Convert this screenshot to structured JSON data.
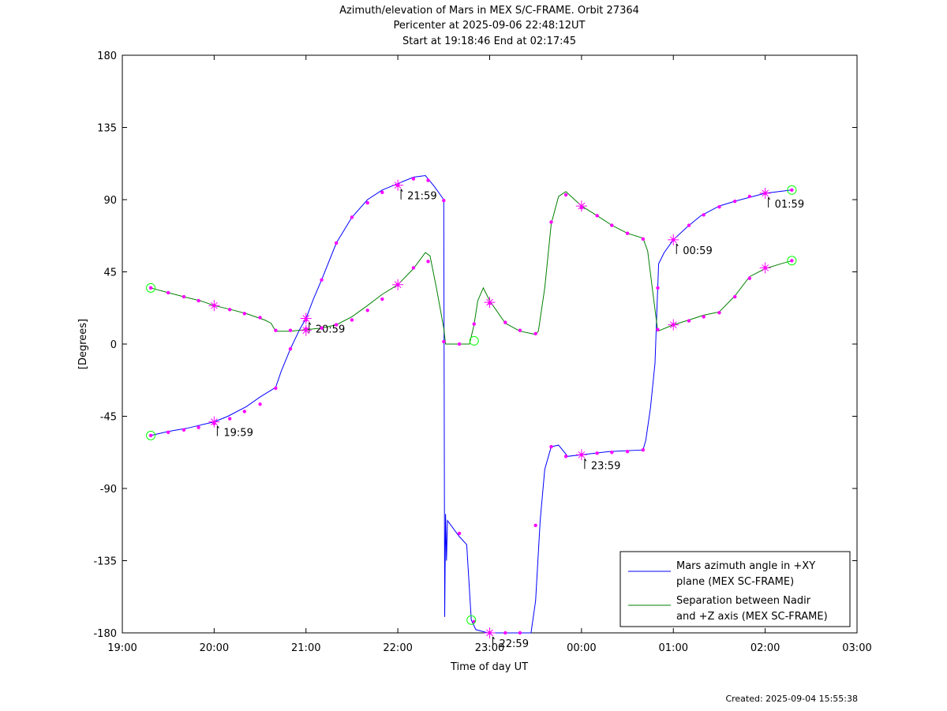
{
  "chart_data": {
    "type": "line",
    "title_lines": [
      "Azimuth/elevation of Mars in MEX S/C-FRAME.  Orbit 27364",
      "Pericenter at 2025-09-06 22:48:12UT",
      "Start at 19:18:46 End at 02:17:45"
    ],
    "xlabel": "Time of day UT",
    "ylabel": "[Degrees]",
    "x_range_hours": [
      19,
      27
    ],
    "ylim": [
      -180,
      180
    ],
    "x_ticks": [
      {
        "h": 19,
        "label": "19:00"
      },
      {
        "h": 20,
        "label": "20:00"
      },
      {
        "h": 21,
        "label": "21:00"
      },
      {
        "h": 22,
        "label": "22:00"
      },
      {
        "h": 23,
        "label": "23:00"
      },
      {
        "h": 24,
        "label": "00:00"
      },
      {
        "h": 25,
        "label": "01:00"
      },
      {
        "h": 26,
        "label": "02:00"
      },
      {
        "h": 27,
        "label": "03:00"
      }
    ],
    "y_ticks": [
      180,
      135,
      90,
      45,
      0,
      -45,
      -90,
      -135,
      -180
    ],
    "grid": false,
    "legend_position": "bottom-right",
    "series": [
      {
        "name": "Mars azimuth angle in +XY plane (MEX SC-FRAME)",
        "legend_lines": [
          "Mars azimuth angle in +XY",
          "plane (MEX SC-FRAME)"
        ],
        "color": "#0000ff",
        "points": [
          [
            19.31,
            -57
          ],
          [
            19.5,
            -54.5
          ],
          [
            19.7,
            -52.5
          ],
          [
            19.85,
            -50.5
          ],
          [
            20.0,
            -48.5
          ],
          [
            20.15,
            -45
          ],
          [
            20.35,
            -39
          ],
          [
            20.5,
            -33
          ],
          [
            20.67,
            -27
          ],
          [
            20.73,
            -17
          ],
          [
            20.83,
            -3
          ],
          [
            20.93,
            9
          ],
          [
            21.0,
            16
          ],
          [
            21.08,
            28
          ],
          [
            21.17,
            40
          ],
          [
            21.33,
            63
          ],
          [
            21.5,
            79
          ],
          [
            21.67,
            90
          ],
          [
            21.83,
            96
          ],
          [
            22.0,
            100
          ],
          [
            22.17,
            104
          ],
          [
            22.3,
            105
          ],
          [
            22.4,
            98
          ],
          [
            22.5,
            90
          ],
          [
            22.51,
            -170
          ],
          [
            22.52,
            -106
          ],
          [
            22.53,
            -135
          ],
          [
            22.54,
            -110
          ],
          [
            22.67,
            -120
          ],
          [
            22.75,
            -125
          ],
          [
            22.8,
            -172
          ],
          [
            22.85,
            -178
          ],
          [
            22.98,
            -180
          ],
          [
            23.2,
            -180
          ],
          [
            23.45,
            -180
          ],
          [
            23.5,
            -160
          ],
          [
            23.55,
            -110
          ],
          [
            23.6,
            -78
          ],
          [
            23.67,
            -64
          ],
          [
            23.75,
            -63
          ],
          [
            23.85,
            -70
          ],
          [
            24.0,
            -69
          ],
          [
            24.3,
            -67
          ],
          [
            24.67,
            -66
          ],
          [
            24.7,
            -60
          ],
          [
            24.75,
            -40
          ],
          [
            24.8,
            -12
          ],
          [
            24.82,
            20
          ],
          [
            24.84,
            50
          ],
          [
            24.9,
            57
          ],
          [
            25.0,
            65
          ],
          [
            25.15,
            73
          ],
          [
            25.3,
            80
          ],
          [
            25.5,
            86
          ],
          [
            25.67,
            89
          ],
          [
            26.0,
            94
          ],
          [
            26.29,
            96
          ]
        ],
        "markers": [
          [
            19.31,
            -57
          ],
          [
            19.5,
            -55
          ],
          [
            19.67,
            -53.5
          ],
          [
            19.83,
            -52
          ],
          [
            20.0,
            -49.5
          ],
          [
            20.17,
            -46.5
          ],
          [
            20.33,
            -42
          ],
          [
            20.5,
            -37.5
          ],
          [
            20.67,
            -27.5
          ],
          [
            20.83,
            -3
          ],
          [
            21.0,
            15
          ],
          [
            21.17,
            40
          ],
          [
            21.33,
            63
          ],
          [
            21.5,
            79
          ],
          [
            21.67,
            88
          ],
          [
            21.83,
            94.5
          ],
          [
            22.0,
            99
          ],
          [
            22.17,
            103
          ],
          [
            22.33,
            102
          ],
          [
            22.5,
            89.5
          ],
          [
            22.67,
            -118
          ],
          [
            22.83,
            -173
          ],
          [
            23.0,
            -180
          ],
          [
            23.17,
            -180
          ],
          [
            23.33,
            -180
          ],
          [
            23.5,
            -113
          ],
          [
            23.67,
            -64
          ],
          [
            23.83,
            -70
          ],
          [
            24.0,
            -69
          ],
          [
            24.17,
            -68
          ],
          [
            24.33,
            -67.5
          ],
          [
            24.5,
            -67
          ],
          [
            24.67,
            -66
          ],
          [
            24.83,
            35
          ],
          [
            25.0,
            65
          ],
          [
            25.17,
            74
          ],
          [
            25.33,
            80.5
          ],
          [
            25.5,
            85.5
          ],
          [
            25.67,
            89
          ],
          [
            25.83,
            92
          ],
          [
            26.0,
            94
          ],
          [
            26.29,
            96
          ]
        ],
        "hour_marks": [
          [
            20.0,
            -48.5,
            "19:59"
          ],
          [
            21.0,
            16,
            "20:59"
          ],
          [
            22.0,
            99,
            "21:59"
          ],
          [
            23.0,
            -180,
            "22:59"
          ],
          [
            24.0,
            -69,
            "23:59"
          ],
          [
            25.0,
            65,
            "00:59"
          ],
          [
            26.0,
            94,
            "01:59"
          ]
        ],
        "circles": [
          [
            19.31,
            -57
          ],
          [
            22.8,
            -172
          ],
          [
            26.29,
            96
          ]
        ]
      },
      {
        "name": "Separation between Nadir and +Z axis (MEX SC-FRAME)",
        "legend_lines": [
          "Separation between Nadir",
          "and +Z axis (MEX SC-FRAME)"
        ],
        "color": "#008000",
        "points": [
          [
            19.31,
            35
          ],
          [
            19.5,
            32
          ],
          [
            19.7,
            29
          ],
          [
            19.85,
            27
          ],
          [
            20.0,
            24
          ],
          [
            20.15,
            22
          ],
          [
            20.35,
            19
          ],
          [
            20.55,
            15
          ],
          [
            20.62,
            13
          ],
          [
            20.67,
            8
          ],
          [
            20.83,
            8
          ],
          [
            21.0,
            9
          ],
          [
            21.17,
            10
          ],
          [
            21.33,
            12
          ],
          [
            21.5,
            17
          ],
          [
            21.67,
            24
          ],
          [
            21.83,
            31
          ],
          [
            22.0,
            37
          ],
          [
            22.17,
            47
          ],
          [
            22.3,
            57
          ],
          [
            22.35,
            55
          ],
          [
            22.42,
            35
          ],
          [
            22.5,
            10
          ],
          [
            22.52,
            0
          ],
          [
            22.67,
            0
          ],
          [
            22.78,
            0
          ],
          [
            22.83,
            12
          ],
          [
            22.87,
            27
          ],
          [
            22.93,
            35
          ],
          [
            23.0,
            27
          ],
          [
            23.17,
            13
          ],
          [
            23.33,
            8
          ],
          [
            23.5,
            6
          ],
          [
            23.53,
            8
          ],
          [
            23.6,
            35
          ],
          [
            23.67,
            75
          ],
          [
            23.75,
            92
          ],
          [
            23.83,
            95
          ],
          [
            24.0,
            86
          ],
          [
            24.17,
            80
          ],
          [
            24.33,
            74
          ],
          [
            24.5,
            69
          ],
          [
            24.67,
            66
          ],
          [
            24.72,
            58
          ],
          [
            24.77,
            35
          ],
          [
            24.83,
            8
          ],
          [
            25.0,
            12
          ],
          [
            25.17,
            15
          ],
          [
            25.33,
            18
          ],
          [
            25.5,
            20
          ],
          [
            25.67,
            30
          ],
          [
            25.83,
            42
          ],
          [
            26.0,
            47
          ],
          [
            26.17,
            50
          ],
          [
            26.29,
            52
          ]
        ],
        "markers": [
          [
            19.31,
            35
          ],
          [
            19.5,
            32
          ],
          [
            19.67,
            29.5
          ],
          [
            19.83,
            27
          ],
          [
            20.0,
            24
          ],
          [
            20.17,
            21.5
          ],
          [
            20.33,
            19
          ],
          [
            20.5,
            16.5
          ],
          [
            20.67,
            8.5
          ],
          [
            20.83,
            8.5
          ],
          [
            21.0,
            9.5
          ],
          [
            21.17,
            10
          ],
          [
            21.33,
            12
          ],
          [
            21.5,
            15
          ],
          [
            21.67,
            21
          ],
          [
            21.83,
            28
          ],
          [
            22.0,
            37
          ],
          [
            22.17,
            47.5
          ],
          [
            22.33,
            51.5
          ],
          [
            22.5,
            1.5
          ],
          [
            22.67,
            0
          ],
          [
            22.83,
            12.5
          ],
          [
            23.0,
            25.5
          ],
          [
            23.17,
            13.5
          ],
          [
            23.33,
            8.5
          ],
          [
            23.5,
            6.5
          ],
          [
            23.67,
            76
          ],
          [
            23.83,
            93
          ],
          [
            24.0,
            85
          ],
          [
            24.17,
            80
          ],
          [
            24.33,
            74
          ],
          [
            24.5,
            69
          ],
          [
            24.67,
            65.5
          ],
          [
            24.83,
            9
          ],
          [
            25.0,
            12
          ],
          [
            25.17,
            14.5
          ],
          [
            25.33,
            17
          ],
          [
            25.5,
            19.5
          ],
          [
            25.67,
            29.5
          ],
          [
            25.83,
            41
          ],
          [
            26.0,
            47.5
          ],
          [
            26.29,
            52
          ]
        ],
        "crosses": [
          [
            20.0,
            24
          ],
          [
            21.0,
            8.5
          ],
          [
            22.0,
            37
          ],
          [
            23.0,
            26
          ],
          [
            24.0,
            86
          ],
          [
            25.0,
            12
          ],
          [
            26.0,
            47.5
          ]
        ],
        "circles": [
          [
            19.31,
            35
          ],
          [
            22.83,
            2
          ],
          [
            26.29,
            52
          ]
        ]
      }
    ],
    "footer": "Created: 2025-09-04 15:55:38",
    "marker_color": "#ff00ff",
    "circle_color": "#00ff00"
  }
}
